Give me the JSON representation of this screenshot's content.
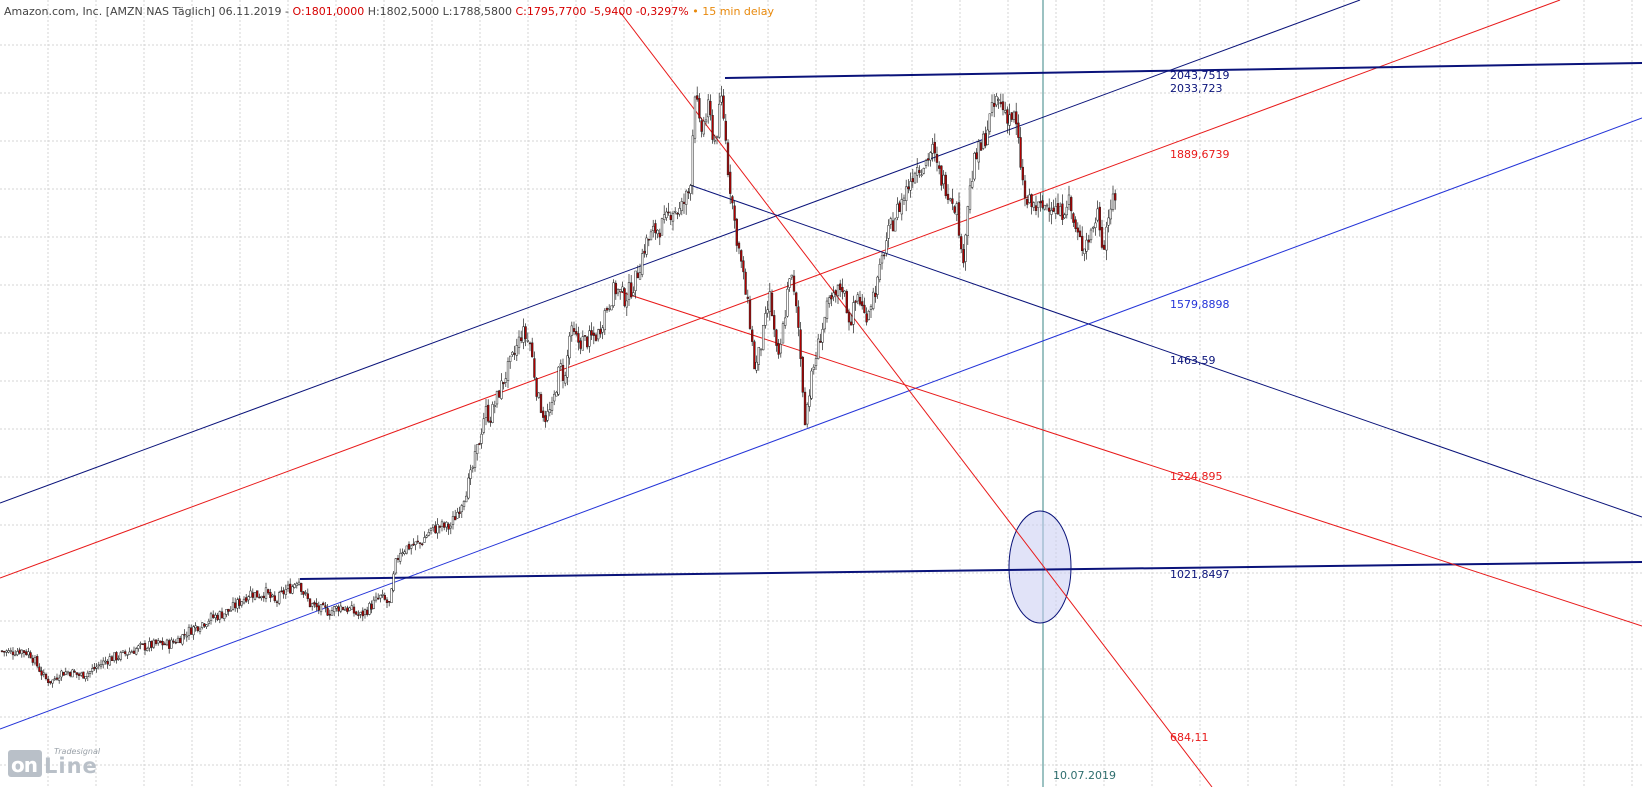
{
  "header": {
    "instrument": "Amazon.com, Inc. [AMZN NAS Täglich] 06.11.2019 -",
    "open": "O:1801,0000",
    "high": "H:1802,5000",
    "low": "L:1788,5800",
    "close": "C:1795,7700 -5,9400 -0,3297%",
    "delay": "• 15 min delay"
  },
  "vertical_marker_date": "10.07.2019",
  "logo": {
    "brand_small": "Tradesignal",
    "brand_on": "on",
    "brand_line": "Line"
  },
  "colors": {
    "dark_blue": "#0a137a",
    "blue": "#2434d8",
    "red": "#e81a1a",
    "candle_up": "#ffffff",
    "candle_down": "#b00000",
    "marker": "#5a9a9a",
    "ellipse": "#c9ccf2"
  },
  "chart_data": {
    "type": "candlestick",
    "title": "Amazon.com, Inc. [AMZN NAS Täglich] 06.11.2019",
    "ylim": [
      553,
      2176
    ],
    "grid": true,
    "levels": [
      {
        "label": "2043,7519",
        "value": 2043.75,
        "color": "dark_blue"
      },
      {
        "label": "2033,723",
        "value": 2033.72,
        "color": "dark_blue"
      },
      {
        "label": "1889,6739",
        "value": 1889.67,
        "color": "red"
      },
      {
        "label": "1579,8898",
        "value": 1579.89,
        "color": "blue"
      },
      {
        "label": "1463,59",
        "value": 1463.59,
        "color": "dark_blue"
      },
      {
        "label": "1224,895",
        "value": 1224.9,
        "color": "red"
      },
      {
        "label": "1021,8497",
        "value": 1021.85,
        "color": "dark_blue"
      },
      {
        "label": "684,11",
        "value": 684.11,
        "color": "red"
      }
    ],
    "price_path": [
      [
        0,
        863
      ],
      [
        10,
        860
      ],
      [
        20,
        865
      ],
      [
        30,
        858
      ],
      [
        38,
        830
      ],
      [
        45,
        805
      ],
      [
        52,
        800
      ],
      [
        60,
        818
      ],
      [
        70,
        820
      ],
      [
        80,
        812
      ],
      [
        90,
        820
      ],
      [
        100,
        835
      ],
      [
        110,
        848
      ],
      [
        120,
        852
      ],
      [
        130,
        862
      ],
      [
        140,
        870
      ],
      [
        150,
        874
      ],
      [
        160,
        878
      ],
      [
        170,
        877
      ],
      [
        180,
        890
      ],
      [
        190,
        906
      ],
      [
        200,
        918
      ],
      [
        210,
        930
      ],
      [
        220,
        938
      ],
      [
        230,
        947
      ],
      [
        240,
        965
      ],
      [
        250,
        984
      ],
      [
        258,
        978
      ],
      [
        265,
        985
      ],
      [
        275,
        962
      ],
      [
        285,
        988
      ],
      [
        292,
        995
      ],
      [
        298,
        1015
      ],
      [
        303,
        985
      ],
      [
        310,
        960
      ],
      [
        320,
        948
      ],
      [
        330,
        945
      ],
      [
        340,
        955
      ],
      [
        350,
        948
      ],
      [
        360,
        935
      ],
      [
        370,
        954
      ],
      [
        380,
        974
      ],
      [
        390,
        958
      ],
      [
        395,
        1037
      ],
      [
        400,
        1070
      ],
      [
        410,
        1080
      ],
      [
        420,
        1085
      ],
      [
        430,
        1112
      ],
      [
        440,
        1120
      ],
      [
        450,
        1118
      ],
      [
        460,
        1162
      ],
      [
        470,
        1218
      ],
      [
        480,
        1302
      ],
      [
        485,
        1362
      ],
      [
        490,
        1344
      ],
      [
        498,
        1392
      ],
      [
        508,
        1445
      ],
      [
        515,
        1478
      ],
      [
        522,
        1522
      ],
      [
        530,
        1498
      ],
      [
        538,
        1385
      ],
      [
        545,
        1345
      ],
      [
        552,
        1362
      ],
      [
        560,
        1452
      ],
      [
        565,
        1422
      ],
      [
        570,
        1522
      ],
      [
        578,
        1502
      ],
      [
        588,
        1505
      ],
      [
        598,
        1518
      ],
      [
        605,
        1564
      ],
      [
        615,
        1612
      ],
      [
        625,
        1592
      ],
      [
        635,
        1625
      ],
      [
        645,
        1702
      ],
      [
        655,
        1732
      ],
      [
        665,
        1745
      ],
      [
        672,
        1778
      ],
      [
        680,
        1770
      ],
      [
        690,
        1818
      ],
      [
        695,
        2025
      ],
      [
        700,
        1930
      ],
      [
        708,
        1980
      ],
      [
        715,
        1915
      ],
      [
        722,
        2008
      ],
      [
        728,
        1862
      ],
      [
        735,
        1742
      ],
      [
        742,
        1652
      ],
      [
        750,
        1542
      ],
      [
        755,
        1440
      ],
      [
        762,
        1505
      ],
      [
        770,
        1595
      ],
      [
        778,
        1452
      ],
      [
        785,
        1560
      ],
      [
        790,
        1652
      ],
      [
        798,
        1540
      ],
      [
        805,
        1345
      ],
      [
        812,
        1432
      ],
      [
        820,
        1512
      ],
      [
        828,
        1575
      ],
      [
        835,
        1592
      ],
      [
        842,
        1622
      ],
      [
        850,
        1542
      ],
      [
        858,
        1600
      ],
      [
        865,
        1552
      ],
      [
        872,
        1592
      ],
      [
        878,
        1625
      ],
      [
        885,
        1702
      ],
      [
        895,
        1762
      ],
      [
        905,
        1808
      ],
      [
        915,
        1862
      ],
      [
        925,
        1872
      ],
      [
        932,
        1900
      ],
      [
        938,
        1852
      ],
      [
        945,
        1828
      ],
      [
        952,
        1802
      ],
      [
        958,
        1770
      ],
      [
        962,
        1652
      ],
      [
        968,
        1792
      ],
      [
        975,
        1878
      ],
      [
        982,
        1905
      ],
      [
        990,
        1962
      ],
      [
        997,
        2002
      ],
      [
        1003,
        1985
      ],
      [
        1008,
        1972
      ],
      [
        1015,
        1962
      ],
      [
        1020,
        1880
      ],
      [
        1025,
        1792
      ],
      [
        1030,
        1785
      ],
      [
        1040,
        1775
      ],
      [
        1050,
        1792
      ],
      [
        1060,
        1762
      ],
      [
        1068,
        1802
      ],
      [
        1075,
        1732
      ],
      [
        1082,
        1700
      ],
      [
        1090,
        1722
      ],
      [
        1098,
        1772
      ],
      [
        1103,
        1698
      ],
      [
        1110,
        1782
      ],
      [
        1117,
        1792
      ]
    ],
    "annotations": {
      "trend_lines": "linear channel lines, horizontal resistance/support lines, fan line and ellipse at 10.07.2019"
    }
  }
}
